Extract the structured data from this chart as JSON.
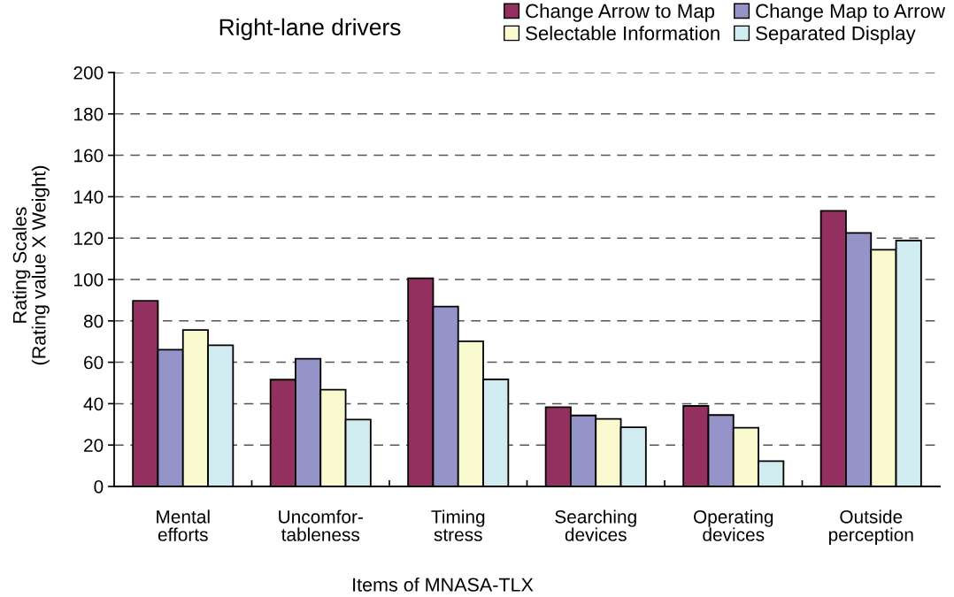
{
  "chart_data": {
    "type": "bar",
    "title": "Right-lane drivers",
    "xlabel": "Items of MNASA-TLX",
    "ylabel": "Rating Scales\n(Rating value X Weight)",
    "categories": [
      "Mental\nefforts",
      "Uncomfor-\ntableness",
      "Timing\nstress",
      "Searching\ndevices",
      "Operating\ndevices",
      "Outside\nperception"
    ],
    "series": [
      {
        "name": "Change Arrow to Map",
        "color": "#943060",
        "values": [
          89.7,
          51.6,
          100.6,
          38.3,
          38.9,
          133.2
        ]
      },
      {
        "name": "Change Map to Arrow",
        "color": "#9494c8",
        "values": [
          66.1,
          61.7,
          86.9,
          34.3,
          34.5,
          122.5
        ]
      },
      {
        "name": "Selectable Information",
        "color": "#fafad0",
        "values": [
          75.6,
          46.7,
          70.1,
          32.6,
          28.4,
          114.4
        ]
      },
      {
        "name": "Separated Display",
        "color": "#d0ecf0",
        "values": [
          68.2,
          32.3,
          51.7,
          28.6,
          12.2,
          118.8
        ]
      }
    ],
    "ylim": [
      0,
      200
    ],
    "yticks": [
      0,
      20,
      40,
      60,
      80,
      100,
      120,
      140,
      160,
      180,
      200
    ],
    "grid": "y",
    "legend": "top right"
  }
}
